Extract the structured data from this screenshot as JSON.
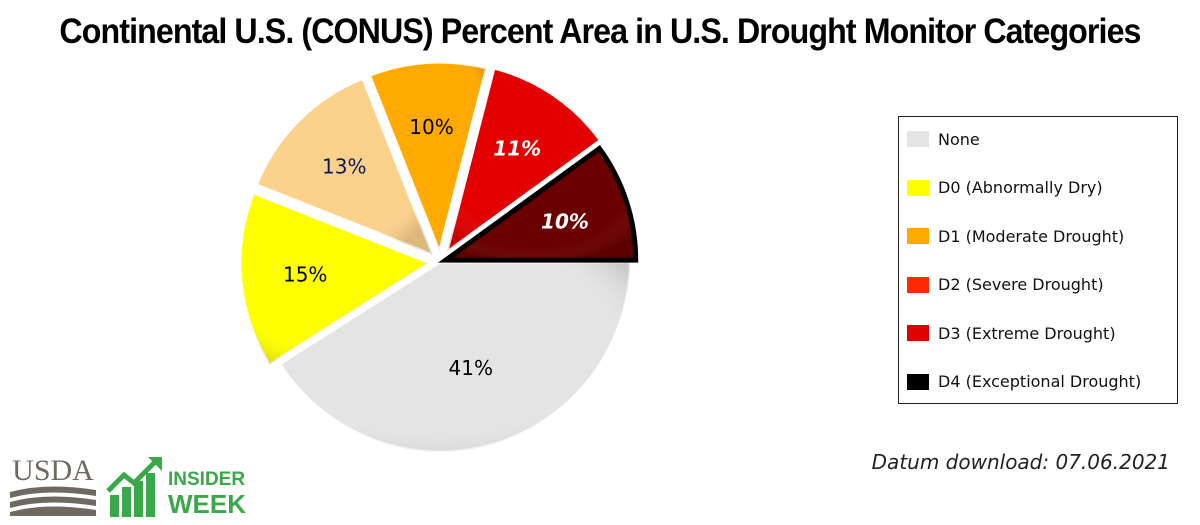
{
  "chart_data": {
    "type": "pie",
    "title": "Continental U.S. (CONUS) Percent Area in U.S. Drought Monitor Categories",
    "slices": [
      {
        "label": "None",
        "value": 41,
        "display": "41%",
        "color": "#e4e4e4",
        "text_color": "#000000",
        "italic": false
      },
      {
        "label": "D0 (Abnormally Dry)",
        "value": 15,
        "display": "15%",
        "color": "#ffff00",
        "text_color": "#000000",
        "italic": false
      },
      {
        "label": "D1 (Moderate Drought)",
        "value": 13,
        "display": "13%",
        "color": "#fcd18c",
        "text_color": "#0a1a5a",
        "italic": false
      },
      {
        "label": "D2 (Severe Drought)",
        "value": 10,
        "display": "10%",
        "color": "#ffaa00",
        "text_color": "#000000",
        "italic": false
      },
      {
        "label": "D3 (Extreme Drought)",
        "value": 11,
        "display": "11%",
        "color": "#e30000",
        "text_color": "#ffffff",
        "italic": true
      },
      {
        "label": "D4 (Exceptional Drought)",
        "value": 10,
        "display": "10%",
        "color": "#6b0000",
        "text_color": "#ffffff",
        "italic": true
      }
    ],
    "legend": {
      "placement": "right",
      "items": [
        {
          "label": "None",
          "color": "#e4e4e4"
        },
        {
          "label": "D0 (Abnormally Dry)",
          "color": "#ffff00"
        },
        {
          "label": "D1 (Moderate Drought)",
          "color": "#ffaa00"
        },
        {
          "label": "D2 (Severe Drought)",
          "color": "#ff2a00"
        },
        {
          "label": "D3 (Extreme Drought)",
          "color": "#e00000"
        },
        {
          "label": "D4 (Exceptional Drought)",
          "color": "#000000"
        }
      ]
    }
  },
  "footer": {
    "download_text": "Datum download: 07.06.2021",
    "logo_usda": "USDA",
    "logo_insider": "INSIDER",
    "logo_week": "WEEK"
  },
  "colors": {
    "insider_green": "#3aa84a",
    "usda_gray": "#6e6a62"
  }
}
